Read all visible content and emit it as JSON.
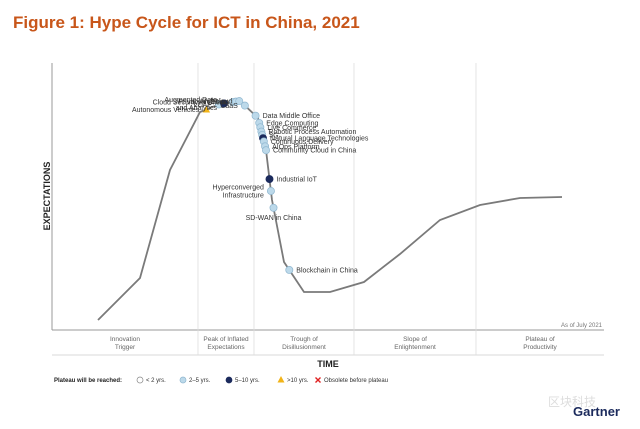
{
  "title": "Figure 1: Hype Cycle for ICT in China, 2021",
  "colors": {
    "title": "#c8561a",
    "curve": "#7a7a7a",
    "lt2": "#ffffff",
    "y2to5": "#bcd9ea",
    "y5to10": "#1b2a5c",
    "gt10": "#f2b418",
    "obsolete": "#e02020"
  },
  "chart_data": {
    "type": "hype-cycle",
    "xlabel": "TIME",
    "ylabel": "EXPECTATIONS",
    "as_of": "As of July 2021",
    "phases": [
      {
        "name": "Innovation\nTrigger"
      },
      {
        "name": "Peak of Inflated\nExpectations"
      },
      {
        "name": "Trough of\nDisillusionment"
      },
      {
        "name": "Slope of\nEnlightenment"
      },
      {
        "name": "Plateau of\nProductivity"
      }
    ],
    "technologies": [
      {
        "name": "Autonomous Vehicles",
        "plateau": ">10 yrs.",
        "t": 0.195,
        "label_side": "left"
      },
      {
        "name": "LCAP",
        "plateau": "2–5 yrs.",
        "t": 0.232,
        "label_side": "left"
      },
      {
        "name": "Augmented Data\nand Analytics",
        "plateau": "5–10 yrs.",
        "t": 0.247,
        "label_side": "left"
      },
      {
        "name": "Cloud Security in China",
        "plateau": "2–5 yrs.",
        "t": 0.273,
        "label_side": "left"
      },
      {
        "name": "Privacy in China",
        "plateau": "2–5 yrs.",
        "t": 0.282,
        "label_side": "left"
      },
      {
        "name": "Multicloud",
        "plateau": "2–5 yrs.",
        "t": 0.292,
        "label_side": "left"
      },
      {
        "name": "CaaS",
        "plateau": "2–5 yrs.",
        "t": 0.31,
        "label_side": "left"
      },
      {
        "name": "Data Middle Office",
        "plateau": "2–5 yrs.",
        "t": 0.345,
        "label_side": "right"
      },
      {
        "name": "Edge Computing",
        "plateau": "2–5 yrs.",
        "t": 0.362,
        "label_side": "right"
      },
      {
        "name": "Live Commerce",
        "plateau": "2–5 yrs.",
        "t": 0.37,
        "label_side": "right"
      },
      {
        "name": "Robotic Process Automation",
        "plateau": "2–5 yrs.",
        "t": 0.378,
        "label_side": "right"
      },
      {
        "name": "5G",
        "plateau": "2–5 yrs.",
        "t": 0.384,
        "label_side": "right"
      },
      {
        "name": "Natural Language Technologies",
        "plateau": "5–10 yrs.",
        "t": 0.39,
        "label_side": "right"
      },
      {
        "name": "Continuous Delivery",
        "plateau": "2–5 yrs.",
        "t": 0.396,
        "label_side": "right"
      },
      {
        "name": "AIOps Platform",
        "plateau": "2–5 yrs.",
        "t": 0.405,
        "label_side": "right"
      },
      {
        "name": "Community Cloud in China",
        "plateau": "2–5 yrs.",
        "t": 0.412,
        "label_side": "right"
      },
      {
        "name": "Industrial IoT",
        "plateau": "5–10 yrs.",
        "t": 0.446,
        "label_side": "right"
      },
      {
        "name": "Hyperconverged\nInfrastructure",
        "plateau": "2–5 yrs.",
        "t": 0.46,
        "label_side": "left"
      },
      {
        "name": "SD-WAN in China",
        "plateau": "2–5 yrs.",
        "t": 0.478,
        "label_side": "below"
      },
      {
        "name": "Blockchain in China",
        "plateau": "2–5 yrs.",
        "t": 0.545,
        "label_side": "right"
      }
    ]
  },
  "legend": {
    "heading": "Plateau will be reached:",
    "items": [
      {
        "label": "< 2 yrs.",
        "marker": "circle-white"
      },
      {
        "label": "2–5 yrs.",
        "marker": "circle-light"
      },
      {
        "label": "5–10 yrs.",
        "marker": "circle-dark"
      },
      {
        "label": ">10 yrs.",
        "marker": "triangle"
      },
      {
        "label": "Obsolete before plateau",
        "marker": "cross"
      }
    ]
  },
  "brand": "Gartner",
  "watermark": "区块科技"
}
